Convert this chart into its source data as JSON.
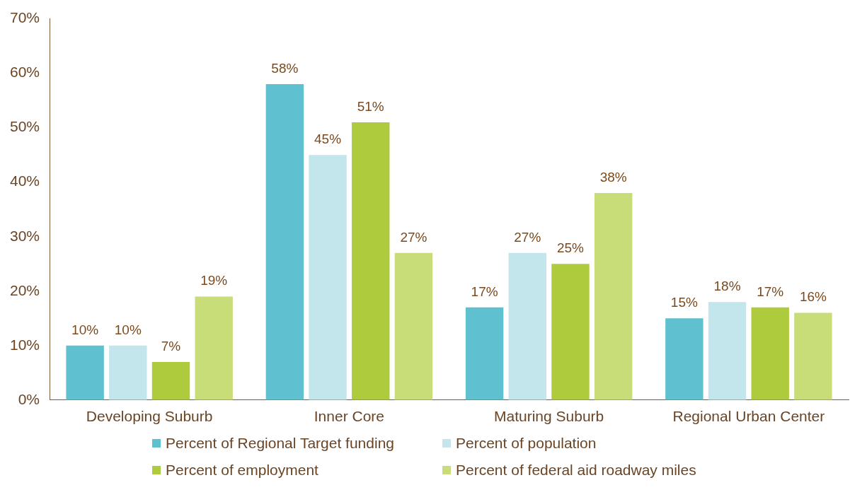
{
  "chart_data": {
    "type": "bar",
    "categories": [
      "Developing Suburb",
      "Inner Core",
      "Maturing Suburb",
      "Regional Urban Center"
    ],
    "series": [
      {
        "name": "Percent of Regional Target funding",
        "color": "#5fc1d0",
        "values": [
          10,
          58,
          17,
          15
        ],
        "value_labels": [
          "10%",
          "58%",
          "17%",
          "15%"
        ]
      },
      {
        "name": "Percent of population",
        "color": "#c2e6ec",
        "values": [
          10,
          45,
          27,
          18
        ],
        "value_labels": [
          "10%",
          "45%",
          "27%",
          "18%"
        ]
      },
      {
        "name": "Percent of employment",
        "color": "#adcb3c",
        "values": [
          7,
          51,
          25,
          17
        ],
        "value_labels": [
          "7%",
          "51%",
          "25%",
          "17%"
        ]
      },
      {
        "name": "Percent of federal aid roadway miles",
        "color": "#c8dc78",
        "values": [
          19,
          27,
          38,
          16
        ],
        "value_labels": [
          "19%",
          "27%",
          "38%",
          "16%"
        ]
      }
    ],
    "ylim": [
      0,
      70
    ],
    "yticks": [
      {
        "value": 0,
        "label": "0%"
      },
      {
        "value": 10,
        "label": "10%"
      },
      {
        "value": 20,
        "label": "20%"
      },
      {
        "value": 30,
        "label": "30%"
      },
      {
        "value": 40,
        "label": "40%"
      },
      {
        "value": 50,
        "label": "50%"
      },
      {
        "value": 60,
        "label": "60%"
      },
      {
        "value": 70,
        "label": "70%"
      }
    ],
    "grid": false,
    "legend": "bottom"
  }
}
